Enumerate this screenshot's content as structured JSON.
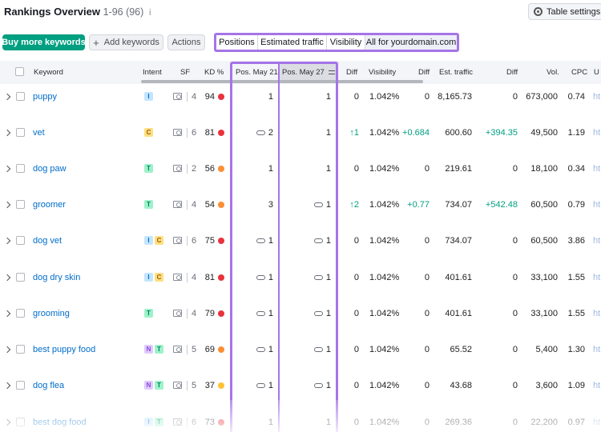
{
  "page": {
    "title": "Rankings Overview",
    "range": "1-96 (96)",
    "info_icon": "i"
  },
  "toolbar": {
    "table_settings_label": "Table settings",
    "buy_button": "Buy more keywords",
    "add_button": "Add keywords",
    "actions_button": "Actions"
  },
  "view_tabs": [
    "Positions",
    "Estimated traffic",
    "Visibility",
    "All for yourdomain.com"
  ],
  "columns": {
    "keyword": "Keyword",
    "intent": "Intent",
    "sf": "SF",
    "kd": "KD %",
    "pos1": "Pos. May 21",
    "pos2": "Pos. May 27",
    "diff1": "Diff",
    "visibility": "Visibility",
    "diff2": "Diff",
    "traffic": "Est. traffic",
    "diff3": "Diff",
    "vol": "Vol.",
    "cpc": "CPC",
    "url": "U"
  },
  "colors": {
    "accent_purple": "#a574e8",
    "primary_green": "#009f81",
    "kd_red": "#e8323c",
    "kd_orange": "#fa8f36",
    "kd_yellow": "#ffc233"
  },
  "rows": [
    {
      "keyword": "puppy",
      "intent": [
        "I"
      ],
      "sf": "4",
      "kd": "94",
      "kd_color": "#e8323c",
      "pos1": "1",
      "pos1_link": false,
      "pos2": "1",
      "pos2_link": false,
      "diff": "0",
      "diff_up": false,
      "visibility": "1.042%",
      "vis_diff": "0",
      "traffic": "8,165.73",
      "traffic_diff": "0",
      "vol": "673,000",
      "cpc": "0.74",
      "url": "ht"
    },
    {
      "keyword": "vet",
      "intent": [
        "C"
      ],
      "sf": "6",
      "kd": "81",
      "kd_color": "#e8323c",
      "pos1": "2",
      "pos1_link": true,
      "pos2": "1",
      "pos2_link": false,
      "diff": "1",
      "diff_up": true,
      "visibility": "1.042%",
      "vis_diff": "+0.684",
      "traffic": "600.60",
      "traffic_diff": "+394.35",
      "vol": "49,500",
      "cpc": "1.19",
      "url": "ht"
    },
    {
      "keyword": "dog paw",
      "intent": [
        "T"
      ],
      "sf": "2",
      "kd": "56",
      "kd_color": "#fa8f36",
      "pos1": "1",
      "pos1_link": false,
      "pos2": "1",
      "pos2_link": false,
      "diff": "0",
      "diff_up": false,
      "visibility": "1.042%",
      "vis_diff": "0",
      "traffic": "219.61",
      "traffic_diff": "0",
      "vol": "18,100",
      "cpc": "0.34",
      "url": "ht"
    },
    {
      "keyword": "groomer",
      "intent": [
        "T"
      ],
      "sf": "4",
      "kd": "54",
      "kd_color": "#fa8f36",
      "pos1": "3",
      "pos1_link": false,
      "pos2": "1",
      "pos2_link": true,
      "diff": "2",
      "diff_up": true,
      "visibility": "1.042%",
      "vis_diff": "+0.77",
      "traffic": "734.07",
      "traffic_diff": "+542.48",
      "vol": "60,500",
      "cpc": "0.79",
      "url": "ht"
    },
    {
      "keyword": "dog vet",
      "intent": [
        "I",
        "C"
      ],
      "sf": "6",
      "kd": "75",
      "kd_color": "#e8323c",
      "pos1": "1",
      "pos1_link": true,
      "pos2": "1",
      "pos2_link": true,
      "diff": "0",
      "diff_up": false,
      "visibility": "1.042%",
      "vis_diff": "0",
      "traffic": "734.07",
      "traffic_diff": "0",
      "vol": "60,500",
      "cpc": "3.86",
      "url": "ht"
    },
    {
      "keyword": "dog dry skin",
      "intent": [
        "I",
        "C"
      ],
      "sf": "4",
      "kd": "81",
      "kd_color": "#e8323c",
      "pos1": "1",
      "pos1_link": true,
      "pos2": "1",
      "pos2_link": true,
      "diff": "0",
      "diff_up": false,
      "visibility": "1.042%",
      "vis_diff": "0",
      "traffic": "401.61",
      "traffic_diff": "0",
      "vol": "33,100",
      "cpc": "1.55",
      "url": "ht"
    },
    {
      "keyword": "grooming",
      "intent": [
        "T"
      ],
      "sf": "4",
      "kd": "79",
      "kd_color": "#e8323c",
      "pos1": "1",
      "pos1_link": true,
      "pos2": "1",
      "pos2_link": true,
      "diff": "0",
      "diff_up": false,
      "visibility": "1.042%",
      "vis_diff": "0",
      "traffic": "401.61",
      "traffic_diff": "0",
      "vol": "33,100",
      "cpc": "1.55",
      "url": "ht"
    },
    {
      "keyword": "best puppy food",
      "intent": [
        "N",
        "T"
      ],
      "sf": "5",
      "kd": "69",
      "kd_color": "#fa8f36",
      "pos1": "1",
      "pos1_link": true,
      "pos2": "1",
      "pos2_link": true,
      "diff": "0",
      "diff_up": false,
      "visibility": "1.042%",
      "vis_diff": "0",
      "traffic": "65.52",
      "traffic_diff": "0",
      "vol": "5,400",
      "cpc": "1.30",
      "url": "ht"
    },
    {
      "keyword": "dog flea",
      "intent": [
        "N",
        "T"
      ],
      "sf": "5",
      "kd": "37",
      "kd_color": "#ffc233",
      "pos1": "1",
      "pos1_link": true,
      "pos2": "1",
      "pos2_link": true,
      "diff": "0",
      "diff_up": false,
      "visibility": "1.042%",
      "vis_diff": "0",
      "traffic": "43.68",
      "traffic_diff": "0",
      "vol": "3,600",
      "cpc": "1.09",
      "url": "ht"
    },
    {
      "keyword": "best dog food",
      "intent": [
        "I",
        "T"
      ],
      "sf": "6",
      "kd": "73",
      "kd_color": "#e8323c",
      "pos1": "1",
      "pos1_link": false,
      "pos2": "1",
      "pos2_link": false,
      "diff": "0",
      "diff_up": false,
      "visibility": "1.042%",
      "vis_diff": "0",
      "traffic": "269.36",
      "traffic_diff": "0",
      "vol": "22,200",
      "cpc": "0.97",
      "url": "ht"
    }
  ]
}
